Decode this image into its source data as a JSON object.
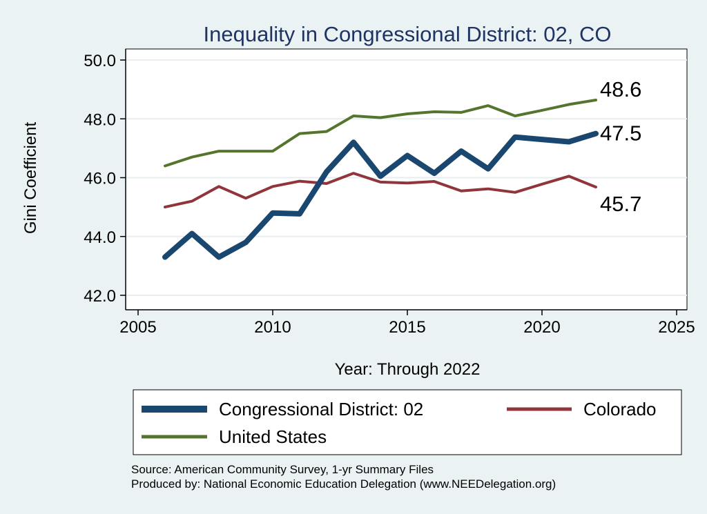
{
  "chart_data": {
    "type": "line",
    "title": "Inequality in Congressional District:  02, CO",
    "xlabel": "Year: Through 2022",
    "ylabel": "Gini Coefficient",
    "xlim": [
      2005,
      2025
    ],
    "ylim": [
      42.0,
      50.0
    ],
    "x_ticks": [
      2005,
      2010,
      2015,
      2020,
      2025
    ],
    "y_ticks": [
      "42.0",
      "44.0",
      "46.0",
      "48.0",
      "50.0"
    ],
    "grid": true,
    "series": [
      {
        "name": "Congressional District:  02",
        "color": "#1a476f",
        "x": [
          2006,
          2007,
          2008,
          2009,
          2010,
          2011,
          2012,
          2013,
          2014,
          2015,
          2016,
          2017,
          2018,
          2019,
          2020,
          2021,
          2022
        ],
        "values": [
          43.3,
          44.1,
          43.3,
          43.8,
          44.8,
          44.77,
          46.2,
          47.2,
          46.05,
          46.75,
          46.15,
          46.9,
          46.3,
          47.38,
          47.3,
          47.22,
          47.5
        ],
        "end_label": "47.5"
      },
      {
        "name": "Colorado",
        "color": "#90353b",
        "x": [
          2006,
          2007,
          2008,
          2009,
          2010,
          2011,
          2012,
          2013,
          2014,
          2015,
          2016,
          2017,
          2018,
          2019,
          2020,
          2021,
          2022
        ],
        "values": [
          45.0,
          45.2,
          45.7,
          45.3,
          45.7,
          45.88,
          45.8,
          46.15,
          45.85,
          45.82,
          45.87,
          45.55,
          45.62,
          45.5,
          45.78,
          46.05,
          45.68
        ],
        "end_label": "45.7"
      },
      {
        "name": "United States",
        "color": "#55752f",
        "x": [
          2006,
          2007,
          2008,
          2009,
          2010,
          2011,
          2012,
          2013,
          2014,
          2015,
          2016,
          2017,
          2018,
          2019,
          2020,
          2021,
          2022
        ],
        "values": [
          46.4,
          46.7,
          46.9,
          46.9,
          46.9,
          47.5,
          47.57,
          48.1,
          48.04,
          48.17,
          48.24,
          48.22,
          48.45,
          48.1,
          48.29,
          48.49,
          48.64
        ],
        "end_label": "48.6"
      }
    ],
    "legend": {
      "position": "bottom",
      "entries": [
        "Congressional District:  02",
        "Colorado",
        "United States"
      ]
    }
  },
  "source_note": "Source: American Community Survey, 1-yr Summary Files",
  "produced_note": "Produced by: National Economic Education Delegation (www.NEEDelegation.org)"
}
